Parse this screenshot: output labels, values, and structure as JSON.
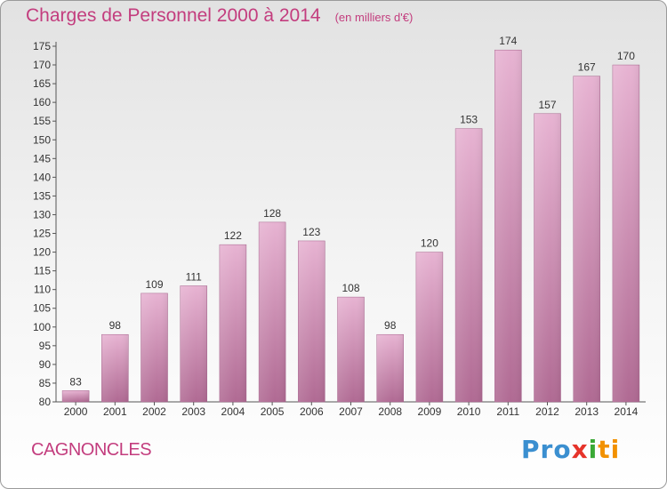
{
  "header": {
    "title": "Charges de Personnel 2000 à 2014",
    "subtitle": "(en milliers d'€)"
  },
  "footer": {
    "commune": "CAGNONCLES",
    "logo": {
      "parts": [
        "Pro",
        "x",
        "i",
        "ti"
      ],
      "colors": [
        "#3b8fd0",
        "#e6332a",
        "#3aa935",
        "#f29100"
      ]
    }
  },
  "colors": {
    "bar_light": "#e7b3d2",
    "bar_dark": "#b06a93",
    "accent": "#c33d7e"
  },
  "chart_data": {
    "type": "bar",
    "title": "Charges de Personnel 2000 à 2014",
    "subtitle": "(en milliers d'€)",
    "categories": [
      "2000",
      "2001",
      "2002",
      "2003",
      "2004",
      "2005",
      "2006",
      "2007",
      "2008",
      "2009",
      "2010",
      "2011",
      "2012",
      "2013",
      "2014"
    ],
    "values": [
      83,
      98,
      109,
      111,
      122,
      128,
      123,
      108,
      98,
      120,
      153,
      174,
      157,
      167,
      170
    ],
    "data_labels": [
      "83",
      "98",
      "109",
      "111",
      "122",
      "128",
      "123",
      "108",
      "98",
      "120",
      "153",
      "174",
      "157",
      "167",
      "170"
    ],
    "ylim": [
      80,
      175
    ],
    "yticks": [
      80,
      85,
      90,
      95,
      100,
      105,
      110,
      115,
      120,
      125,
      130,
      135,
      140,
      145,
      150,
      155,
      160,
      165,
      170,
      175
    ],
    "grid": false,
    "legend": "none"
  }
}
